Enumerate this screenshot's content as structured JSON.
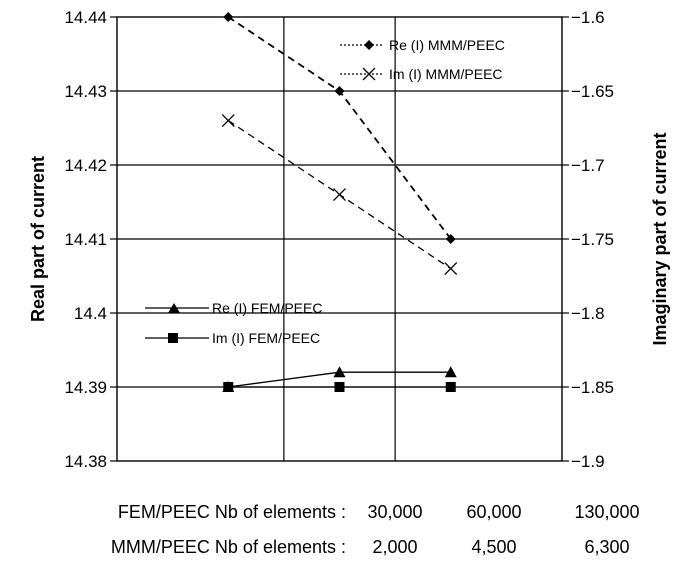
{
  "chart_data": {
    "type": "line",
    "x_positions": [
      1,
      2,
      3
    ],
    "xlim": [
      0,
      4
    ],
    "left_axis": {
      "label": "Real part of current",
      "ylim": [
        14.38,
        14.44
      ],
      "ticks": [
        14.44,
        14.43,
        14.42,
        14.41,
        14.4,
        14.39,
        14.38
      ],
      "tick_labels": [
        "14.44",
        "14.43",
        "14.42",
        "14.41",
        "14.4",
        "14.39",
        "14.38"
      ]
    },
    "right_axis": {
      "label": "Imaginary part of current",
      "ylim": [
        -1.9,
        -1.6
      ],
      "ticks": [
        -1.6,
        -1.65,
        -1.7,
        -1.75,
        -1.8,
        -1.85,
        -1.9
      ],
      "tick_labels": [
        "−1.6",
        "−1.65",
        "−1.7",
        "−1.75",
        "−1.8",
        "−1.85",
        "−1.9"
      ]
    },
    "grid": true,
    "series": [
      {
        "name": "Re (I) MMM/PEEC",
        "axis": "left",
        "marker": "diamond",
        "dash": true,
        "x": [
          1,
          2,
          3
        ],
        "values": [
          14.44,
          14.43,
          14.41
        ]
      },
      {
        "name": "Im (I) MMM/PEEC",
        "axis": "right",
        "marker": "x",
        "dash": true,
        "x": [
          1,
          2,
          3
        ],
        "values": [
          -1.67,
          -1.72,
          -1.77
        ]
      },
      {
        "name": "Re (I) FEM/PEEC",
        "axis": "left",
        "marker": "triangle",
        "dash": false,
        "x": [
          1,
          2,
          3
        ],
        "values": [
          14.39,
          14.392,
          14.392
        ]
      },
      {
        "name": "Im (I) FEM/PEEC",
        "axis": "right",
        "marker": "square",
        "dash": false,
        "x": [
          1,
          2,
          3
        ],
        "values": [
          -1.85,
          -1.85,
          -1.85
        ]
      }
    ],
    "x_rows": [
      {
        "label": "FEM/PEEC Nb of elements :",
        "values": [
          "30,000",
          "60,000",
          "130,000"
        ]
      },
      {
        "label": "MMM/PEEC Nb of elements :",
        "values": [
          "2,000",
          "4,500",
          "6,300"
        ]
      }
    ],
    "legend_placement": [
      "top-right",
      "lower-left"
    ]
  }
}
